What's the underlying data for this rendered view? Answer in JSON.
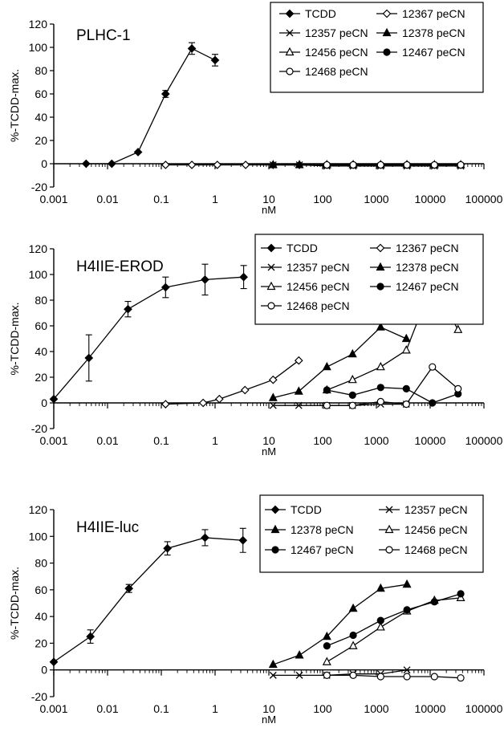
{
  "chart_data": [
    {
      "type": "line",
      "title": "PLHC-1",
      "ylabel": "%-TCDD-max.",
      "xlabel": "nM",
      "x_scale": "log",
      "xlim": [
        0.001,
        100000
      ],
      "ylim": [
        -20,
        120
      ],
      "yticks": [
        -20,
        0,
        20,
        40,
        60,
        80,
        100,
        120
      ],
      "xticks": [
        {
          "value": 0.001,
          "label": "0.001"
        },
        {
          "value": 0.01,
          "label": "0.01"
        },
        {
          "value": 0.1,
          "label": "0.1"
        },
        {
          "value": 1,
          "label": "1"
        },
        {
          "value": 10,
          "label": "10"
        },
        {
          "value": 100,
          "label": "100"
        },
        {
          "value": 1000,
          "label": "1000"
        },
        {
          "value": 10000,
          "label": "10000"
        },
        {
          "value": 100000,
          "label": "100000"
        }
      ],
      "legend_columns": 2,
      "series": [
        {
          "name": "TCDD",
          "marker": "diamond-filled",
          "points": [
            {
              "x": 0.004,
              "y": 0
            },
            {
              "x": 0.012,
              "y": 0
            },
            {
              "x": 0.037,
              "y": 10
            },
            {
              "x": 0.12,
              "y": 60,
              "err": 3
            },
            {
              "x": 0.37,
              "y": 99,
              "err": 5
            },
            {
              "x": 1.0,
              "y": 89,
              "err": 5
            }
          ]
        },
        {
          "name": "12367 peCN",
          "marker": "diamond-open",
          "points": [
            {
              "x": 0.12,
              "y": -1
            },
            {
              "x": 0.37,
              "y": -1
            },
            {
              "x": 1.1,
              "y": -1
            },
            {
              "x": 3.7,
              "y": -1
            },
            {
              "x": 12,
              "y": -1
            },
            {
              "x": 37,
              "y": -1
            },
            {
              "x": 120,
              "y": -1
            },
            {
              "x": 370,
              "y": -1
            },
            {
              "x": 1200,
              "y": -1
            },
            {
              "x": 3700,
              "y": -1
            },
            {
              "x": 12000,
              "y": -1
            },
            {
              "x": 37000,
              "y": -1
            }
          ]
        },
        {
          "name": "12357 peCN",
          "marker": "x",
          "points": [
            {
              "x": 12,
              "y": -1
            },
            {
              "x": 37,
              "y": -1
            },
            {
              "x": 120,
              "y": -2
            },
            {
              "x": 370,
              "y": -2
            },
            {
              "x": 1200,
              "y": -2
            },
            {
              "x": 3700,
              "y": -2
            },
            {
              "x": 12000,
              "y": -2
            },
            {
              "x": 37000,
              "y": -2
            }
          ]
        },
        {
          "name": "12378 peCN",
          "marker": "triangle-filled",
          "points": [
            {
              "x": 12,
              "y": -1
            },
            {
              "x": 37,
              "y": -1
            },
            {
              "x": 120,
              "y": -1
            },
            {
              "x": 370,
              "y": -1
            },
            {
              "x": 1200,
              "y": -1
            },
            {
              "x": 3700,
              "y": -1
            }
          ]
        },
        {
          "name": "12456 peCN",
          "marker": "triangle-open",
          "points": [
            {
              "x": 120,
              "y": -1
            },
            {
              "x": 370,
              "y": -1
            },
            {
              "x": 1200,
              "y": -1
            },
            {
              "x": 3700,
              "y": -1
            },
            {
              "x": 12000,
              "y": -1
            },
            {
              "x": 37000,
              "y": -1
            }
          ]
        },
        {
          "name": "12467 peCN",
          "marker": "circle-filled",
          "points": [
            {
              "x": 120,
              "y": -1
            },
            {
              "x": 370,
              "y": -1
            },
            {
              "x": 1200,
              "y": -1
            },
            {
              "x": 3700,
              "y": -1
            },
            {
              "x": 12000,
              "y": -1
            },
            {
              "x": 37000,
              "y": -1
            }
          ]
        },
        {
          "name": "12468  peCN",
          "marker": "circle-open",
          "points": [
            {
              "x": 120,
              "y": -1
            },
            {
              "x": 370,
              "y": -1
            },
            {
              "x": 1200,
              "y": -1
            },
            {
              "x": 3700,
              "y": -1
            },
            {
              "x": 12000,
              "y": -1
            },
            {
              "x": 37000,
              "y": -1
            }
          ]
        }
      ]
    },
    {
      "type": "line",
      "title": "H4IIE-EROD",
      "ylabel": "%-TCDD-max.",
      "xlabel": "nM",
      "x_scale": "log",
      "xlim": [
        0.001,
        100000
      ],
      "ylim": [
        -20,
        120
      ],
      "yticks": [
        -20,
        0,
        20,
        40,
        60,
        80,
        100,
        120
      ],
      "xticks": [
        {
          "value": 0.001,
          "label": "0.001"
        },
        {
          "value": 0.01,
          "label": "0.01"
        },
        {
          "value": 0.1,
          "label": "0.1"
        },
        {
          "value": 1,
          "label": "1"
        },
        {
          "value": 10,
          "label": "10"
        },
        {
          "value": 100,
          "label": "100"
        },
        {
          "value": 1000,
          "label": "1000"
        },
        {
          "value": 10000,
          "label": "10000"
        },
        {
          "value": 100000,
          "label": "100000"
        }
      ],
      "legend_columns": 2,
      "series": [
        {
          "name": "TCDD",
          "marker": "diamond-filled",
          "points": [
            {
              "x": 0.001,
              "y": 3
            },
            {
              "x": 0.0045,
              "y": 35,
              "err": 18
            },
            {
              "x": 0.024,
              "y": 73,
              "err": 6
            },
            {
              "x": 0.12,
              "y": 90,
              "err": 8
            },
            {
              "x": 0.65,
              "y": 96,
              "err": 12
            },
            {
              "x": 3.4,
              "y": 98,
              "err": 9
            }
          ]
        },
        {
          "name": "12367 peCN",
          "marker": "diamond-open",
          "points": [
            {
              "x": 0.12,
              "y": -1
            },
            {
              "x": 0.6,
              "y": 0
            },
            {
              "x": 1.2,
              "y": 3
            },
            {
              "x": 3.6,
              "y": 10
            },
            {
              "x": 12,
              "y": 18
            },
            {
              "x": 36,
              "y": 33
            }
          ]
        },
        {
          "name": "12357 peCN",
          "marker": "x",
          "points": [
            {
              "x": 12,
              "y": -2
            },
            {
              "x": 36,
              "y": -2
            },
            {
              "x": 120,
              "y": -2
            },
            {
              "x": 360,
              "y": -2
            },
            {
              "x": 1200,
              "y": -1
            },
            {
              "x": 3600,
              "y": -1
            }
          ]
        },
        {
          "name": "12378 peCN",
          "marker": "triangle-filled",
          "points": [
            {
              "x": 12,
              "y": 4
            },
            {
              "x": 36,
              "y": 9
            },
            {
              "x": 120,
              "y": 28
            },
            {
              "x": 360,
              "y": 38
            },
            {
              "x": 1200,
              "y": 59
            },
            {
              "x": 3600,
              "y": 50
            }
          ]
        },
        {
          "name": "12456 peCN",
          "marker": "triangle-open",
          "points": [
            {
              "x": 120,
              "y": 10
            },
            {
              "x": 360,
              "y": 18
            },
            {
              "x": 1200,
              "y": 28
            },
            {
              "x": 3600,
              "y": 41
            },
            {
              "x": 11000,
              "y": 93
            },
            {
              "x": 33000,
              "y": 57
            }
          ]
        },
        {
          "name": "12467 peCN",
          "marker": "circle-filled",
          "points": [
            {
              "x": 120,
              "y": 10
            },
            {
              "x": 360,
              "y": 6
            },
            {
              "x": 1200,
              "y": 12
            },
            {
              "x": 3600,
              "y": 11
            },
            {
              "x": 11000,
              "y": 0
            },
            {
              "x": 33000,
              "y": 7
            }
          ]
        },
        {
          "name": "12468  peCN",
          "marker": "circle-open",
          "points": [
            {
              "x": 120,
              "y": -2
            },
            {
              "x": 360,
              "y": -2
            },
            {
              "x": 1200,
              "y": 1
            },
            {
              "x": 3600,
              "y": -1
            },
            {
              "x": 11000,
              "y": 28
            },
            {
              "x": 33000,
              "y": 11
            }
          ]
        }
      ]
    },
    {
      "type": "line",
      "title": "H4IIE-luc",
      "ylabel": "%-TCDD-max.",
      "xlabel": "nM",
      "x_scale": "log",
      "xlim": [
        0.001,
        100000
      ],
      "ylim": [
        -20,
        120
      ],
      "yticks": [
        -20,
        0,
        20,
        40,
        60,
        80,
        100,
        120
      ],
      "xticks": [
        {
          "value": 0.001,
          "label": "0.001"
        },
        {
          "value": 0.01,
          "label": "0.01"
        },
        {
          "value": 0.1,
          "label": "0.1"
        },
        {
          "value": 1,
          "label": "1"
        },
        {
          "value": 10,
          "label": "10"
        },
        {
          "value": 100,
          "label": "100"
        },
        {
          "value": 1000,
          "label": "1000"
        },
        {
          "value": 10000,
          "label": "10000"
        },
        {
          "value": 100000,
          "label": "100000"
        }
      ],
      "legend_columns": 2,
      "series": [
        {
          "name": "TCDD",
          "marker": "diamond-filled",
          "points": [
            {
              "x": 0.001,
              "y": 6
            },
            {
              "x": 0.0048,
              "y": 25,
              "err": 5
            },
            {
              "x": 0.025,
              "y": 61,
              "err": 3
            },
            {
              "x": 0.13,
              "y": 91,
              "err": 5
            },
            {
              "x": 0.65,
              "y": 99,
              "err": 6
            },
            {
              "x": 3.3,
              "y": 97,
              "err": 9
            }
          ]
        },
        {
          "name": "12357 peCN",
          "marker": "x",
          "points": [
            {
              "x": 12,
              "y": -4
            },
            {
              "x": 37,
              "y": -4
            },
            {
              "x": 120,
              "y": -4
            },
            {
              "x": 370,
              "y": -3
            },
            {
              "x": 1200,
              "y": -3
            },
            {
              "x": 3700,
              "y": 0
            }
          ]
        },
        {
          "name": "12378 peCN",
          "marker": "triangle-filled",
          "points": [
            {
              "x": 12,
              "y": 4
            },
            {
              "x": 37,
              "y": 11
            },
            {
              "x": 120,
              "y": 25
            },
            {
              "x": 370,
              "y": 46
            },
            {
              "x": 1200,
              "y": 61
            },
            {
              "x": 3700,
              "y": 64
            }
          ]
        },
        {
          "name": "12456 peCN",
          "marker": "triangle-open",
          "points": [
            {
              "x": 120,
              "y": 6
            },
            {
              "x": 370,
              "y": 18
            },
            {
              "x": 1200,
              "y": 32
            },
            {
              "x": 3700,
              "y": 44
            },
            {
              "x": 12000,
              "y": 52
            },
            {
              "x": 37000,
              "y": 54
            }
          ]
        },
        {
          "name": "12467 peCN",
          "marker": "circle-filled",
          "points": [
            {
              "x": 120,
              "y": 18
            },
            {
              "x": 370,
              "y": 26
            },
            {
              "x": 1200,
              "y": 37
            },
            {
              "x": 3700,
              "y": 45
            },
            {
              "x": 12000,
              "y": 51
            },
            {
              "x": 37000,
              "y": 57
            }
          ]
        },
        {
          "name": "12468  peCN",
          "marker": "circle-open",
          "points": [
            {
              "x": 120,
              "y": -4
            },
            {
              "x": 370,
              "y": -4
            },
            {
              "x": 1200,
              "y": -5
            },
            {
              "x": 3700,
              "y": -5
            },
            {
              "x": 12000,
              "y": -5
            },
            {
              "x": 37000,
              "y": -6
            }
          ]
        }
      ]
    }
  ]
}
